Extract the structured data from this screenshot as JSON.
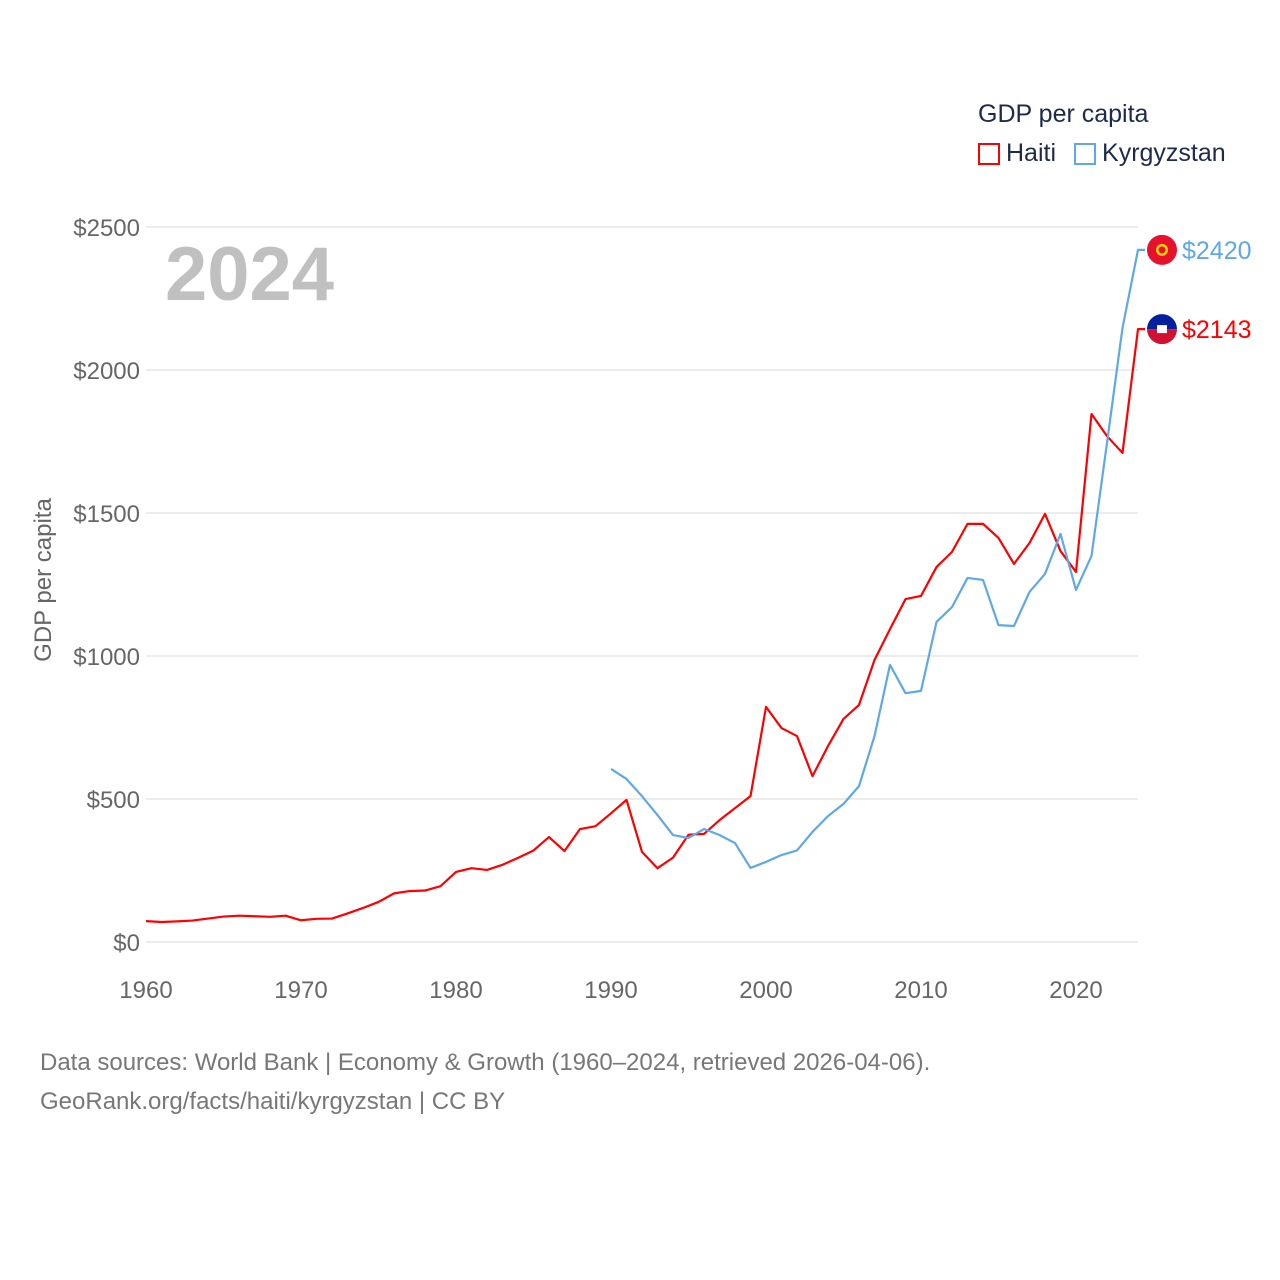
{
  "chart_data": {
    "type": "line",
    "title": "",
    "year_label": "2024",
    "xlabel": "",
    "ylabel": "GDP per capita",
    "xlim": [
      1960,
      2024
    ],
    "ylim": [
      0,
      2500
    ],
    "x_ticks": [
      1960,
      1970,
      1980,
      1990,
      2000,
      2010,
      2020
    ],
    "x_tick_labels": [
      "1960",
      "1970",
      "1980",
      "1990",
      "2000",
      "2010",
      "2020"
    ],
    "y_ticks": [
      0,
      500,
      1000,
      1500,
      2000,
      2500
    ],
    "y_tick_labels": [
      "$0",
      "$500",
      "$1000",
      "$1500",
      "$2000",
      "$2500"
    ],
    "grid": true,
    "legend_title": "GDP per capita",
    "legend_position": "top-right",
    "series": [
      {
        "name": "Haiti",
        "color": "#ff0000",
        "flag": "haiti-flag",
        "end_label": "$2143",
        "start_year": 1960,
        "values": [
          73,
          70,
          72,
          75,
          82,
          89,
          92,
          90,
          88,
          92,
          76,
          81,
          82,
          100,
          119,
          140,
          170,
          178,
          180,
          195,
          245,
          258,
          252,
          270,
          294,
          320,
          367,
          318,
          395,
          405,
          450,
          497,
          315,
          258,
          295,
          375,
          378,
          426,
          468,
          510,
          822,
          748,
          720,
          580,
          685,
          780,
          829,
          986,
          1094,
          1199,
          1210,
          1311,
          1364,
          1462,
          1462,
          1413,
          1322,
          1395,
          1497,
          1367,
          1294,
          1846,
          1769,
          1710,
          2143
        ]
      },
      {
        "name": "Kyrgyzstan",
        "color": "#5fa8e8",
        "flag": "kyrgyzstan-flag",
        "end_label": "$2420",
        "start_year": 1990,
        "values": [
          605,
          570,
          510,
          444,
          374,
          364,
          395,
          374,
          346,
          259,
          280,
          304,
          320,
          385,
          440,
          483,
          545,
          720,
          969,
          870,
          878,
          1119,
          1171,
          1273,
          1266,
          1108,
          1105,
          1224,
          1287,
          1427,
          1231,
          1350,
          1745,
          2147,
          2420
        ]
      }
    ]
  },
  "footer": {
    "line1": "Data sources: World Bank | Economy & Growth (1960–2024, retrieved 2026-04-06).",
    "line2": "GeoRank.org/facts/haiti/kyrgyzstan | CC BY"
  }
}
